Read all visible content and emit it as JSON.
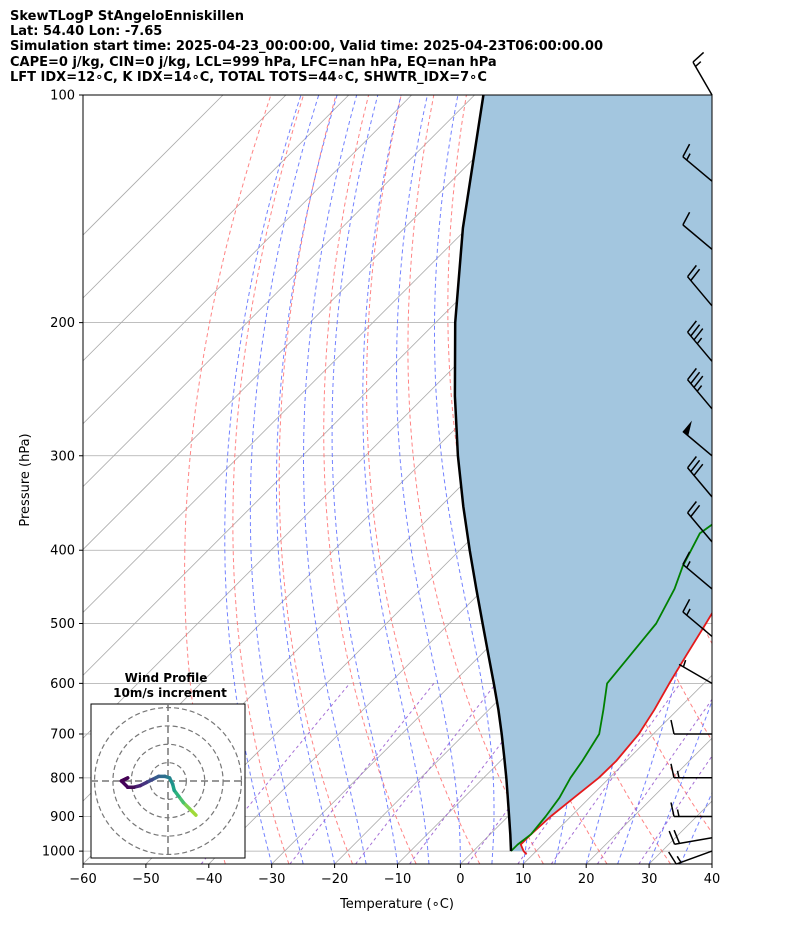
{
  "header": {
    "line1": "SkewTLogP StAngeloEnniskillen",
    "line2": "Lat: 54.40   Lon: -7.65",
    "line3": "Simulation start time: 2025-04-23_00:00:00, Valid time: 2025-04-23T06:00:00.00",
    "line4": "CAPE=0 j/kg, CIN=0 j/kg, LCL=999 hPa, LFC=nan hPa, EQ=nan hPa",
    "line5": "LFT IDX=12∘C, K IDX=14∘C, TOTAL TOTS=44∘C, SHWTR_IDX=7∘C"
  },
  "chart_data": {
    "type": "line",
    "subtype": "skew-t log-p",
    "xlabel": "Temperature (∘C)",
    "ylabel": "Pressure (hPa)",
    "xlim": [
      -60,
      40
    ],
    "ylim": [
      1040,
      100
    ],
    "y_scale": "log",
    "grid": true,
    "x_ticks": [
      "−60",
      "−50",
      "−40",
      "−30",
      "−20",
      "−10",
      "0",
      "10",
      "20",
      "30",
      "40"
    ],
    "x_tick_values": [
      -60,
      -50,
      -40,
      -30,
      -20,
      -10,
      0,
      10,
      20,
      30,
      40
    ],
    "y_ticks": [
      "1000",
      "900",
      "800",
      "700",
      "600",
      "500",
      "400",
      "300",
      "200",
      "100"
    ],
    "y_tick_values": [
      1000,
      900,
      800,
      700,
      600,
      500,
      400,
      300,
      200,
      100
    ],
    "colors": {
      "temperature": "#e41a1c",
      "dewpoint": "#008000",
      "parcel": "#000000",
      "shading": "#a3c6df",
      "dry_adiabats": "#ff6e6e",
      "moist_adiabats": "#5a6cff",
      "mixing_ratio": "#9b5fd0",
      "isotherms": "#aaaaaa"
    },
    "series": [
      {
        "key": "temperature",
        "p": [
          1010,
          1000,
          980,
          950,
          900,
          850,
          800,
          760,
          700,
          650,
          600,
          550,
          500,
          470,
          440,
          400,
          350,
          330,
          300,
          280,
          250,
          230,
          210,
          200,
          185,
          170,
          155,
          140,
          125,
          110,
          100
        ],
        "t": [
          9,
          8,
          6.5,
          6.5,
          6.8,
          7.5,
          8.3,
          8.4,
          7.7,
          6.3,
          4.5,
          2.7,
          0.8,
          -0.5,
          -1.6,
          -2.5,
          -3.7,
          -5.2,
          -8.5,
          -9.7,
          -11.5,
          -14,
          -17,
          -17.5,
          -17,
          -16.5,
          -18,
          -18.5,
          -19.5,
          -21,
          -22
        ]
      },
      {
        "key": "dewpoint",
        "p": [
          1000,
          980,
          950,
          900,
          850,
          800,
          760,
          700,
          650,
          600,
          550,
          500,
          450,
          420,
          380,
          350,
          320,
          300,
          270,
          250,
          230,
          210,
          200,
          185,
          170,
          155,
          140,
          125,
          110,
          100
        ],
        "t": [
          6,
          6,
          6.5,
          6,
          5.2,
          3.8,
          3,
          1.4,
          -1.8,
          -5.4,
          -6.2,
          -7.1,
          -9.7,
          -12,
          -14.5,
          -12.8,
          -9.5,
          -11.2,
          -14.5,
          -19,
          -22,
          -26,
          -29.5,
          -31.5,
          -35.5,
          -41,
          -39,
          -38.5,
          -39,
          -39.5
        ]
      },
      {
        "key": "parcel",
        "p": [
          1000,
          950,
          900,
          850,
          800,
          750,
          700,
          650,
          600,
          550,
          500,
          450,
          400,
          350,
          300,
          250,
          200,
          150,
          100
        ],
        "t": [
          6,
          3.2,
          0.2,
          -3,
          -6.4,
          -10.1,
          -14.1,
          -18.5,
          -23.4,
          -28.8,
          -34.7,
          -41.2,
          -48.4,
          -56.4,
          -65.3,
          -75.3,
          -86.9,
          -100.7,
          -118.6
        ]
      }
    ],
    "wind_barbs": {
      "p": [
        100,
        130,
        160,
        190,
        225,
        260,
        300,
        340,
        390,
        450,
        520,
        600,
        700,
        800,
        900,
        960,
        1000
      ],
      "speed_kt": [
        15,
        15,
        10,
        20,
        35,
        35,
        50,
        30,
        20,
        15,
        15,
        5,
        10,
        15,
        15,
        20,
        15
      ],
      "dir_deg": [
        330,
        310,
        310,
        320,
        320,
        320,
        310,
        320,
        320,
        310,
        310,
        300,
        270,
        270,
        270,
        260,
        250
      ]
    },
    "hodograph": {
      "title": "Wind Profile",
      "subtitle": "10m/s increment",
      "ring_increment_ms": 10,
      "u": [
        9,
        7,
        5,
        3.5,
        2,
        1.5,
        0.5,
        -1,
        -3,
        -5,
        -7,
        -9,
        -11,
        -13,
        -15,
        -13,
        -15
      ],
      "v": [
        -11,
        -9,
        -7,
        -5,
        -3,
        -1,
        1,
        1.5,
        1.5,
        0.5,
        -0.5,
        -1.5,
        -2,
        -2,
        0,
        1,
        0
      ]
    }
  }
}
